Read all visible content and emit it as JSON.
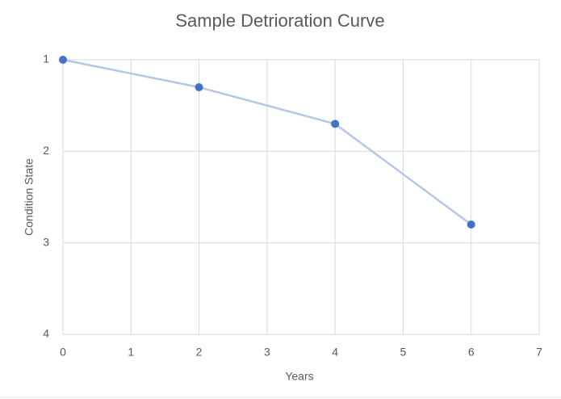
{
  "chart_data": {
    "type": "line",
    "title": "Sample Detrioration Curve",
    "x_label": "Years",
    "y_label": "Condition State",
    "x": [
      0,
      2,
      4,
      6
    ],
    "values": [
      1,
      1.3,
      1.7,
      2.8
    ],
    "line_color": "#b4c7e7",
    "marker_color": "#4472c4",
    "xlim": [
      0,
      7
    ],
    "xticks": [
      0,
      1,
      2,
      3,
      4,
      5,
      6,
      7
    ],
    "ylim": [
      1,
      4
    ],
    "yticks": [
      1,
      2,
      3,
      4
    ],
    "y_reversed": true,
    "grid": true
  }
}
